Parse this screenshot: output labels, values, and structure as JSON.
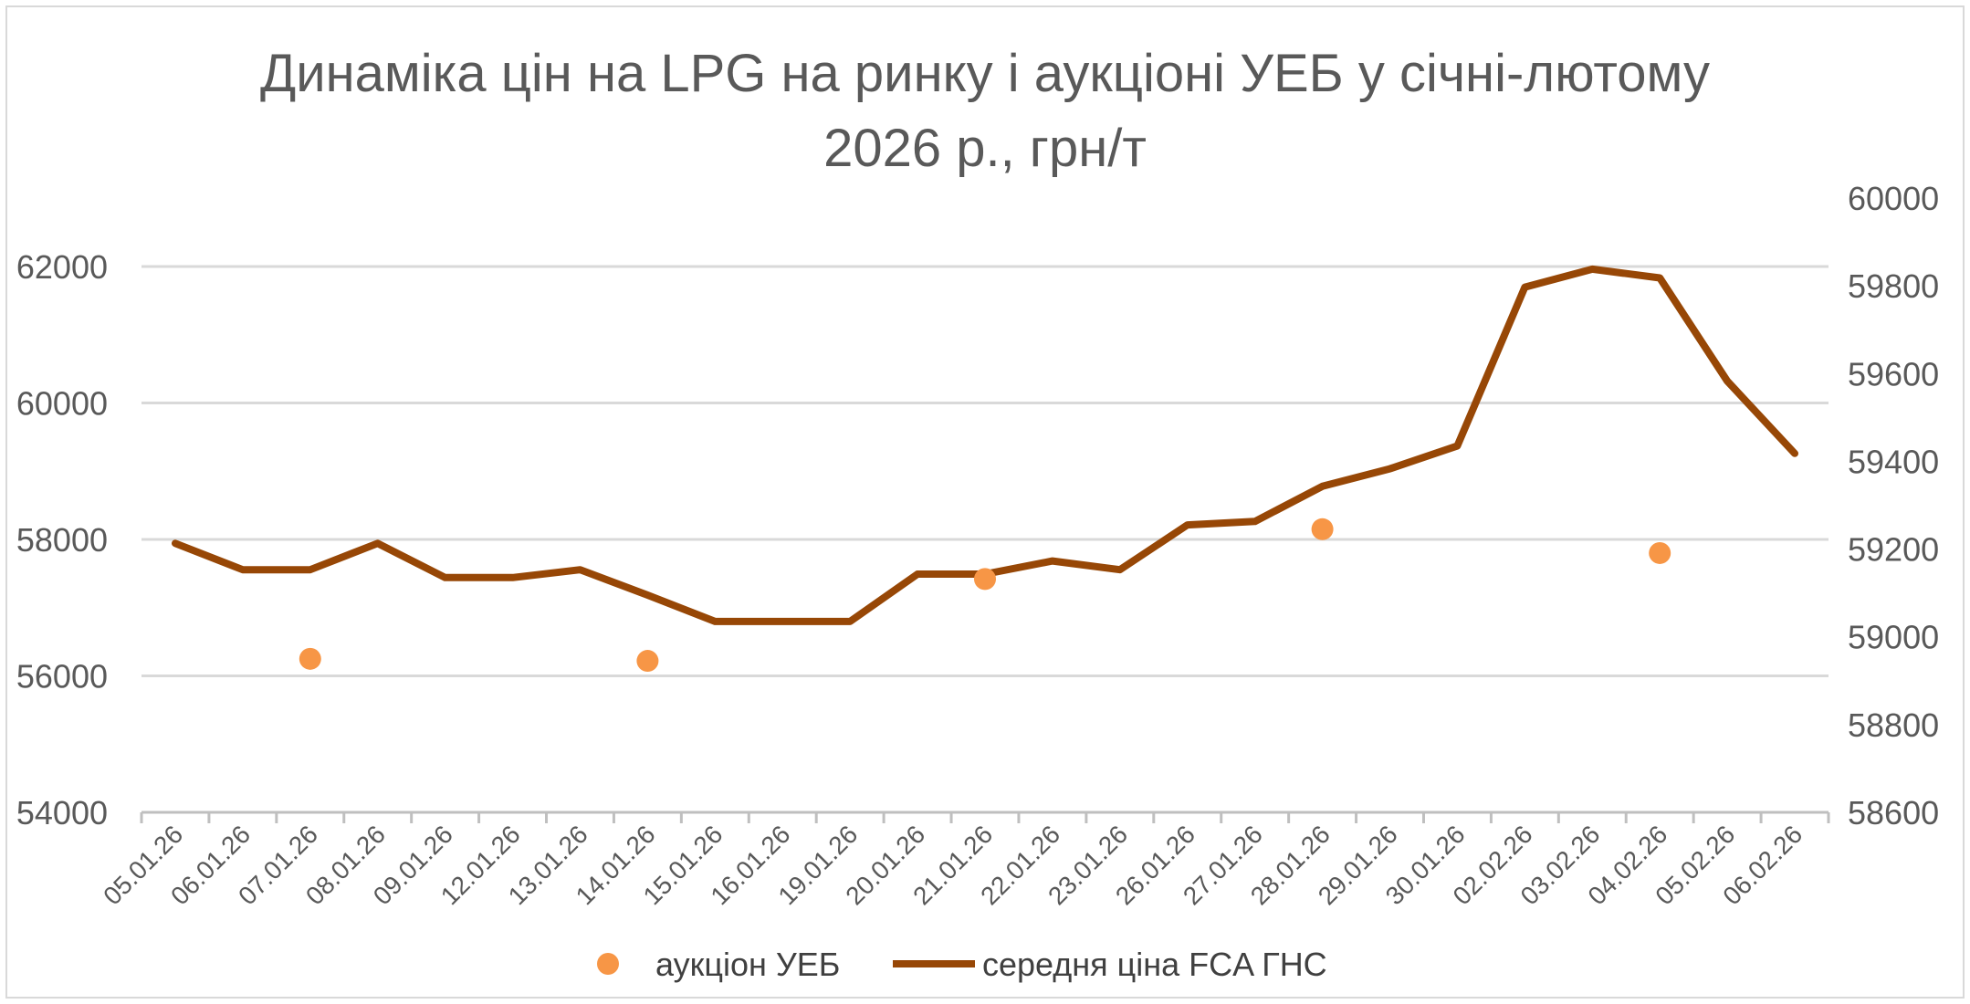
{
  "chart_data": {
    "type": "line",
    "title_lines": [
      "Динаміка цін на LPG на ринку і аукціоні УЕБ у січні-лютому",
      "2026 р., грн/т"
    ],
    "categories": [
      "05.01.26",
      "06.01.26",
      "07.01.26",
      "08.01.26",
      "09.01.26",
      "12.01.26",
      "13.01.26",
      "14.01.26",
      "15.01.26",
      "16.01.26",
      "19.01.26",
      "20.01.26",
      "21.01.26",
      "22.01.26",
      "23.01.26",
      "26.01.26",
      "27.01.26",
      "28.01.26",
      "29.01.26",
      "30.01.26",
      "02.02.26",
      "03.02.26",
      "04.02.26",
      "05.02.26",
      "06.02.26"
    ],
    "left_axis": {
      "min": 54000,
      "max": 62000,
      "ticks": [
        "54000",
        "56000",
        "58000",
        "60000",
        "62000"
      ]
    },
    "right_axis": {
      "min": 58600,
      "max": 60000,
      "ticks": [
        "58600",
        "58800",
        "59000",
        "59200",
        "59400",
        "59600",
        "59800",
        "60000"
      ]
    },
    "grid": true,
    "legend_position": "bottom",
    "series": [
      {
        "name": "аукціон УЕБ",
        "kind": "scatter",
        "axis": "left",
        "color": "#f79646",
        "values": [
          null,
          null,
          56250,
          null,
          null,
          null,
          null,
          56220,
          null,
          null,
          null,
          null,
          57420,
          null,
          null,
          null,
          null,
          58150,
          null,
          null,
          null,
          null,
          57800,
          null,
          null
        ]
      },
      {
        "name": "середня ціна FCA ГНС",
        "kind": "line",
        "axis": "right",
        "color": "#974706",
        "values": [
          59213,
          59153,
          59153,
          59213,
          59135,
          59135,
          59153,
          59095,
          59035,
          59035,
          59035,
          59143,
          59143,
          59173,
          59153,
          59255,
          59263,
          59343,
          59383,
          59435,
          59797,
          59838,
          59818,
          59583,
          59418
        ]
      }
    ]
  }
}
